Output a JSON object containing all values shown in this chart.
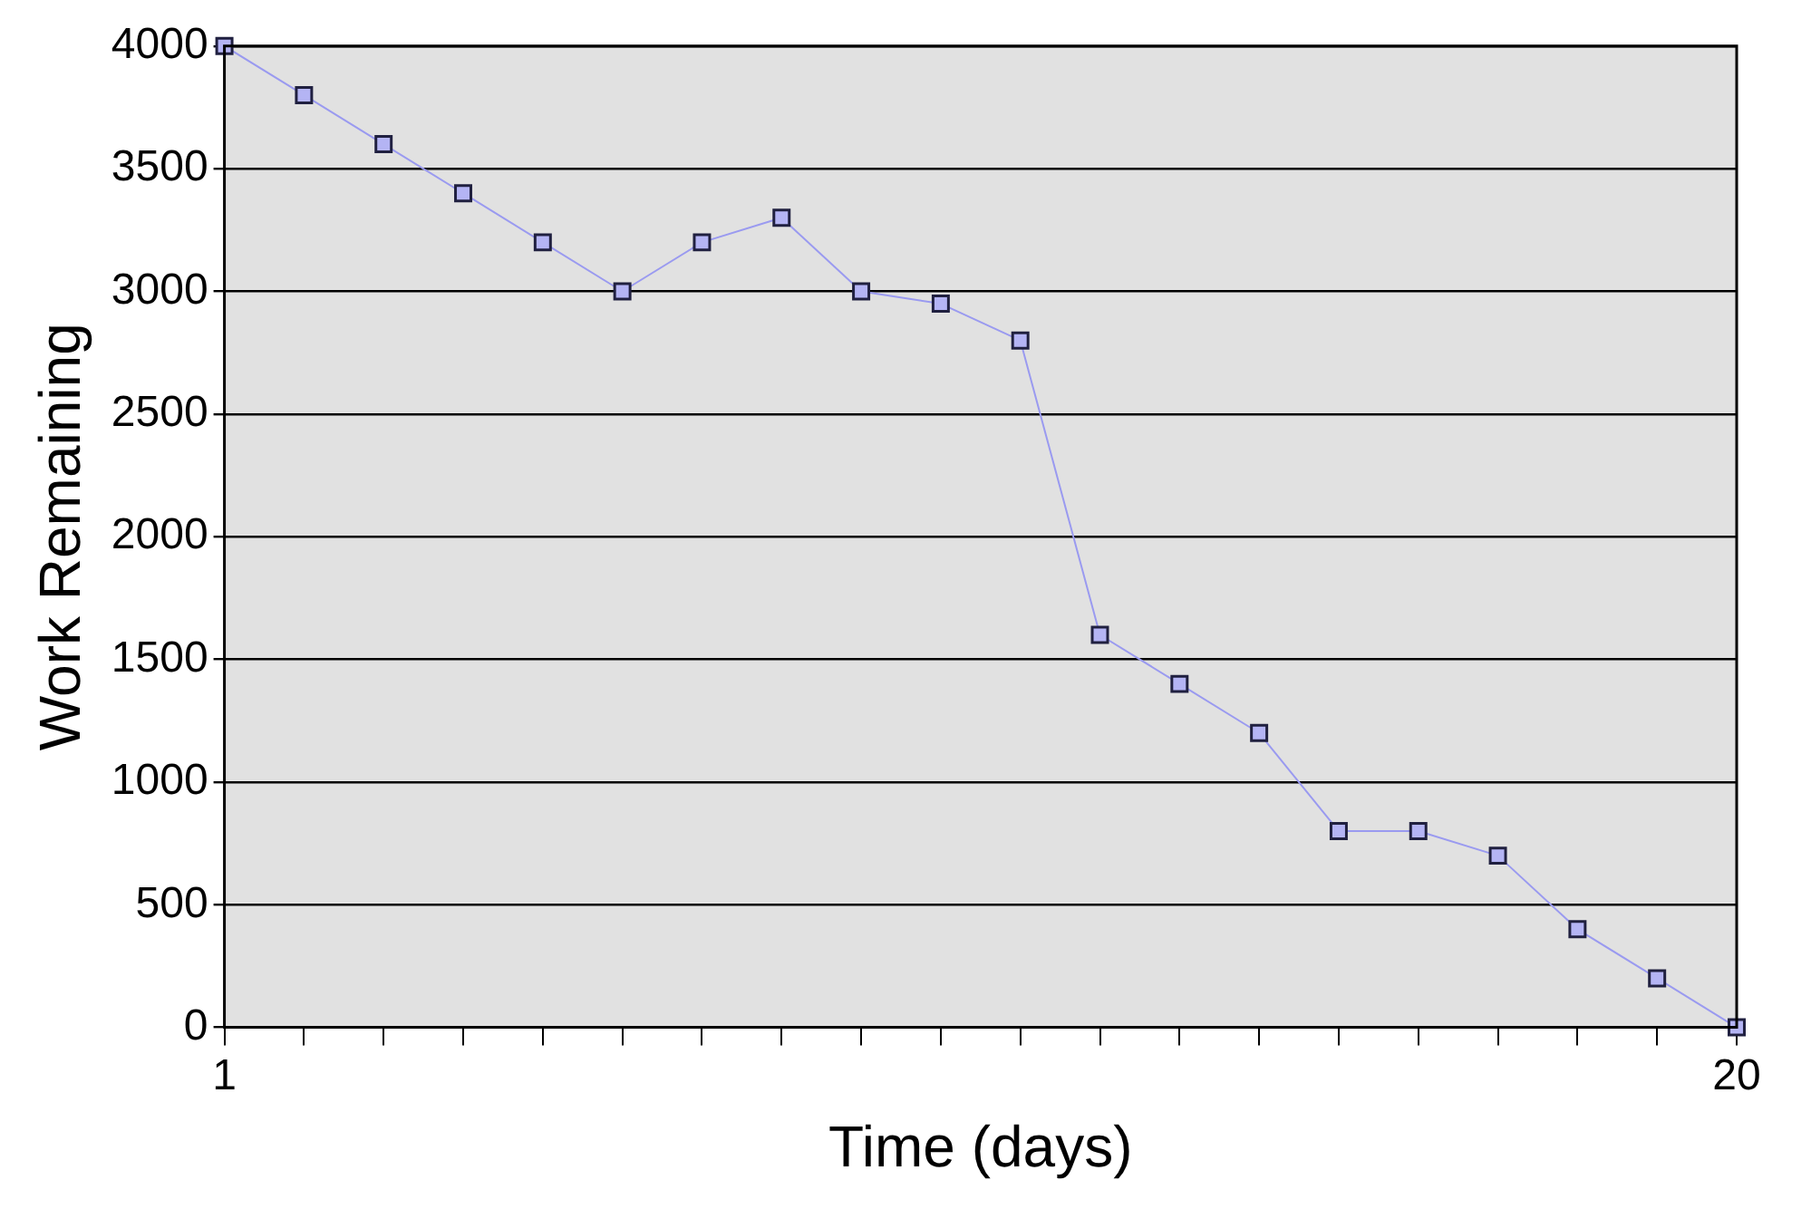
{
  "chart_data": {
    "type": "line",
    "xlabel": "Time (days)",
    "ylabel": "Work Remaining",
    "x": [
      1,
      2,
      3,
      4,
      5,
      6,
      7,
      8,
      9,
      10,
      11,
      12,
      13,
      14,
      15,
      16,
      17,
      18,
      19,
      20
    ],
    "series": [
      {
        "color": "#9a9af0",
        "values": [
          4000,
          3800,
          3600,
          3400,
          3200,
          3000,
          3200,
          3300,
          3000,
          2950,
          2800,
          1600,
          1400,
          1200,
          800,
          800,
          700,
          400,
          200,
          0
        ]
      }
    ],
    "xlim": [
      1,
      20
    ],
    "xticks": [
      1,
      {
        "value": 2,
        "label": null
      },
      {
        "value": 3,
        "label": null
      },
      {
        "value": 4,
        "label": null
      },
      {
        "value": 5,
        "label": null
      },
      {
        "value": 6,
        "label": null
      },
      {
        "value": 7,
        "label": null
      },
      {
        "value": 8,
        "label": null
      },
      {
        "value": 9,
        "label": null
      },
      {
        "value": 10,
        "label": null
      },
      {
        "value": 11,
        "label": null
      },
      {
        "value": 12,
        "label": null
      },
      {
        "value": 13,
        "label": null
      },
      {
        "value": 14,
        "label": null
      },
      {
        "value": 15,
        "label": null
      },
      {
        "value": 16,
        "label": null
      },
      {
        "value": 17,
        "label": null
      },
      {
        "value": 18,
        "label": null
      },
      {
        "value": 19,
        "label": null
      },
      20
    ],
    "ylim": [
      0,
      4000
    ],
    "yticks": [
      0,
      500,
      1000,
      1500,
      2000,
      2500,
      3000,
      3500,
      4000
    ],
    "grid": "y",
    "marker": "square",
    "line_style": "solid"
  }
}
